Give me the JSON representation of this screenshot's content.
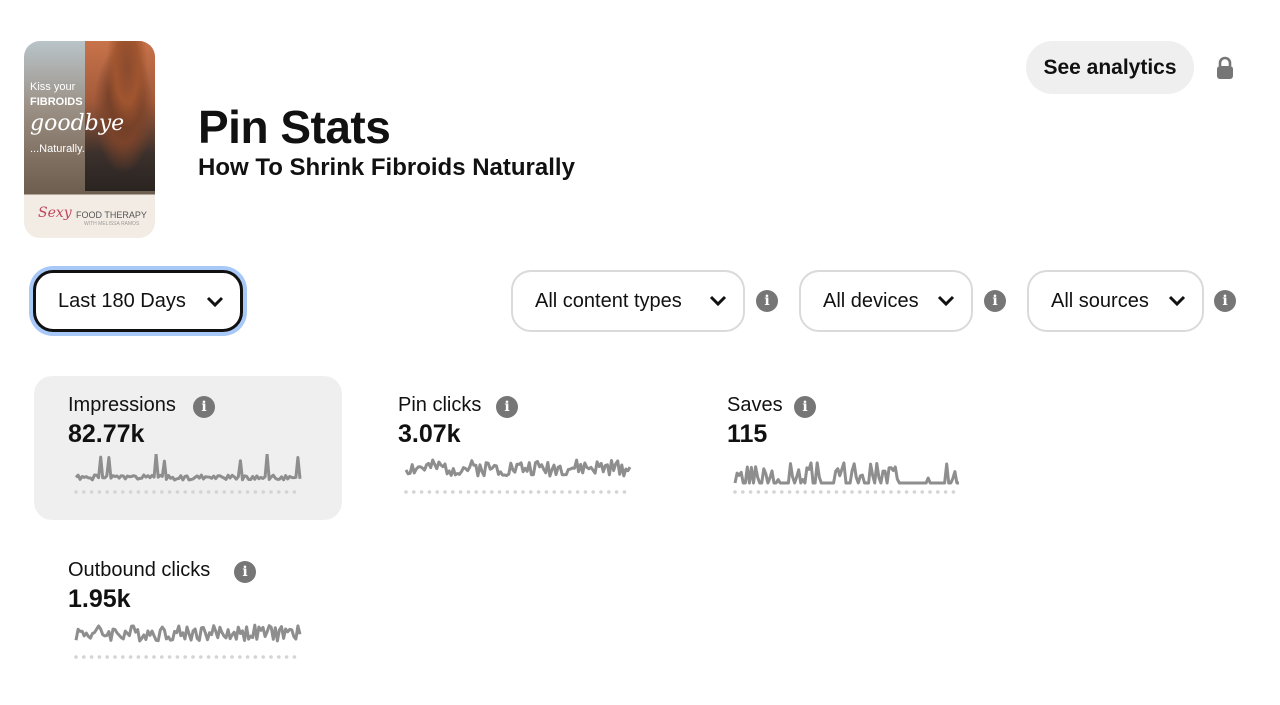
{
  "pin": {
    "image": {
      "line1": "Kiss your",
      "line2": "FIBROIDS",
      "line3": "goodbye",
      "line4": "...Naturally.",
      "brand_script": "Sexy",
      "brand_text": "FOOD THERAPY",
      "brand_sub": "WITH MELISSA RAMOS"
    },
    "title": "Pin Stats",
    "subtitle": "How To Shrink Fibroids Naturally"
  },
  "header": {
    "see_analytics_label": "See analytics"
  },
  "filters": {
    "date_range": "Last 180 Days",
    "content_type": "All content types",
    "devices": "All devices",
    "sources": "All sources"
  },
  "metrics": [
    {
      "label": "Impressions",
      "value": "82.77k",
      "selected": true
    },
    {
      "label": "Pin clicks",
      "value": "3.07k",
      "selected": false
    },
    {
      "label": "Saves",
      "value": "115",
      "selected": false
    },
    {
      "label": "Outbound clicks",
      "value": "1.95k",
      "selected": false
    }
  ],
  "colors": {
    "sparkline": "#8e8e8e",
    "card_selected_bg": "#efefef",
    "focus_ring": "#a8c8f8",
    "info_icon": "#767676"
  }
}
